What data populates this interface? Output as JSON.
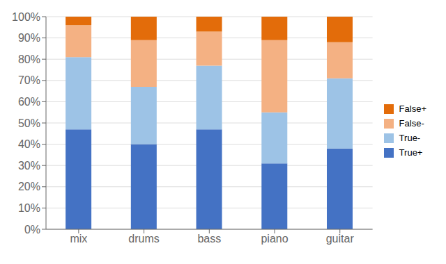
{
  "chart_data": {
    "type": "bar",
    "stacked": true,
    "grid": true,
    "legend": "right",
    "categories": [
      "mix",
      "drums",
      "bass",
      "piano",
      "guitar"
    ],
    "series": [
      {
        "name": "True+",
        "color": "#4472C4",
        "values": [
          0.47,
          0.4,
          0.47,
          0.31,
          0.38
        ]
      },
      {
        "name": "True-",
        "color": "#9DC3E6",
        "values": [
          0.34,
          0.27,
          0.3,
          0.24,
          0.33
        ]
      },
      {
        "name": "False-",
        "color": "#F4B183",
        "values": [
          0.15,
          0.22,
          0.16,
          0.34,
          0.17
        ]
      },
      {
        "name": "False+",
        "color": "#E36C0A",
        "values": [
          0.04,
          0.11,
          0.07,
          0.11,
          0.12
        ]
      }
    ],
    "ylim": [
      0,
      1.0
    ],
    "yticks": [
      {
        "value": 0.0,
        "label": "0%"
      },
      {
        "value": 0.1,
        "label": "10%"
      },
      {
        "value": 0.2,
        "label": "20%"
      },
      {
        "value": 0.3,
        "label": "30%"
      },
      {
        "value": 0.4,
        "label": "40%"
      },
      {
        "value": 0.5,
        "label": "50%"
      },
      {
        "value": 0.6,
        "label": "60%"
      },
      {
        "value": 0.7,
        "label": "70%"
      },
      {
        "value": 0.8,
        "label": "80%"
      },
      {
        "value": 0.9,
        "label": "90%"
      },
      {
        "value": 1.0,
        "label": "100%"
      }
    ]
  }
}
